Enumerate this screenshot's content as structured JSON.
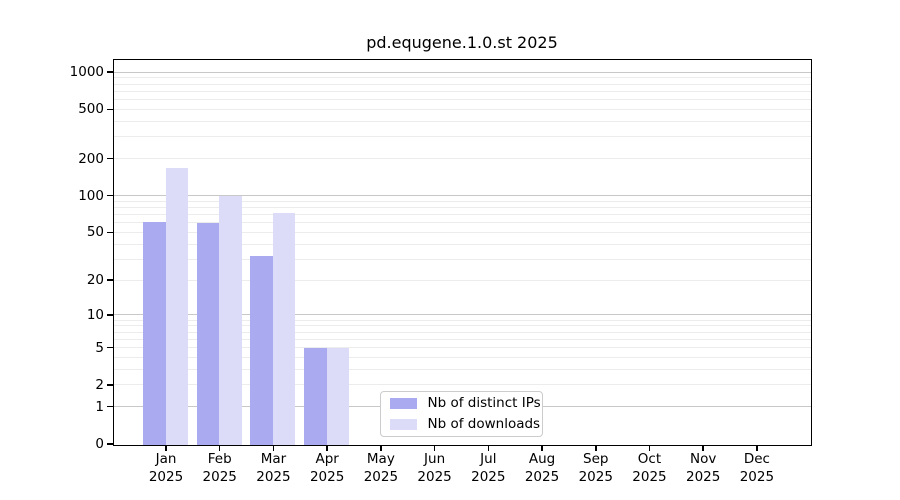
{
  "chart_data": {
    "type": "bar",
    "title": "pd.equgene.1.0.st 2025",
    "categories": [
      "Jan",
      "Feb",
      "Mar",
      "Apr",
      "May",
      "Jun",
      "Jul",
      "Aug",
      "Sep",
      "Oct",
      "Nov",
      "Dec"
    ],
    "year_label": "2025",
    "series": [
      {
        "name": "Nb of distinct IPs",
        "color": "#aaaaf0",
        "values": [
          62,
          60,
          32,
          5,
          0,
          0,
          0,
          0,
          0,
          0,
          0,
          0
        ]
      },
      {
        "name": "Nb of downloads",
        "color": "#dcdcf8",
        "values": [
          170,
          100,
          73,
          5,
          0,
          0,
          0,
          0,
          0,
          0,
          0,
          0
        ]
      }
    ],
    "yscale": "log10(1+value)",
    "ylim": [
      0,
      1253
    ],
    "y_ticks": [
      0,
      1,
      2,
      5,
      10,
      20,
      50,
      100,
      200,
      500,
      1000
    ],
    "y_major_gridlines": [
      1,
      10,
      100,
      1000
    ],
    "y_minor_gridlines": [
      2,
      3,
      4,
      5,
      6,
      7,
      8,
      9,
      20,
      30,
      40,
      50,
      60,
      70,
      80,
      90,
      200,
      300,
      400,
      500,
      600,
      700,
      800,
      900
    ],
    "grid": true,
    "legend_position": "inside-bottom-center",
    "colors": {
      "axis": "#000000",
      "major_grid": "#c8c8c8",
      "minor_grid": "#ececec",
      "background": "#ffffff"
    }
  }
}
